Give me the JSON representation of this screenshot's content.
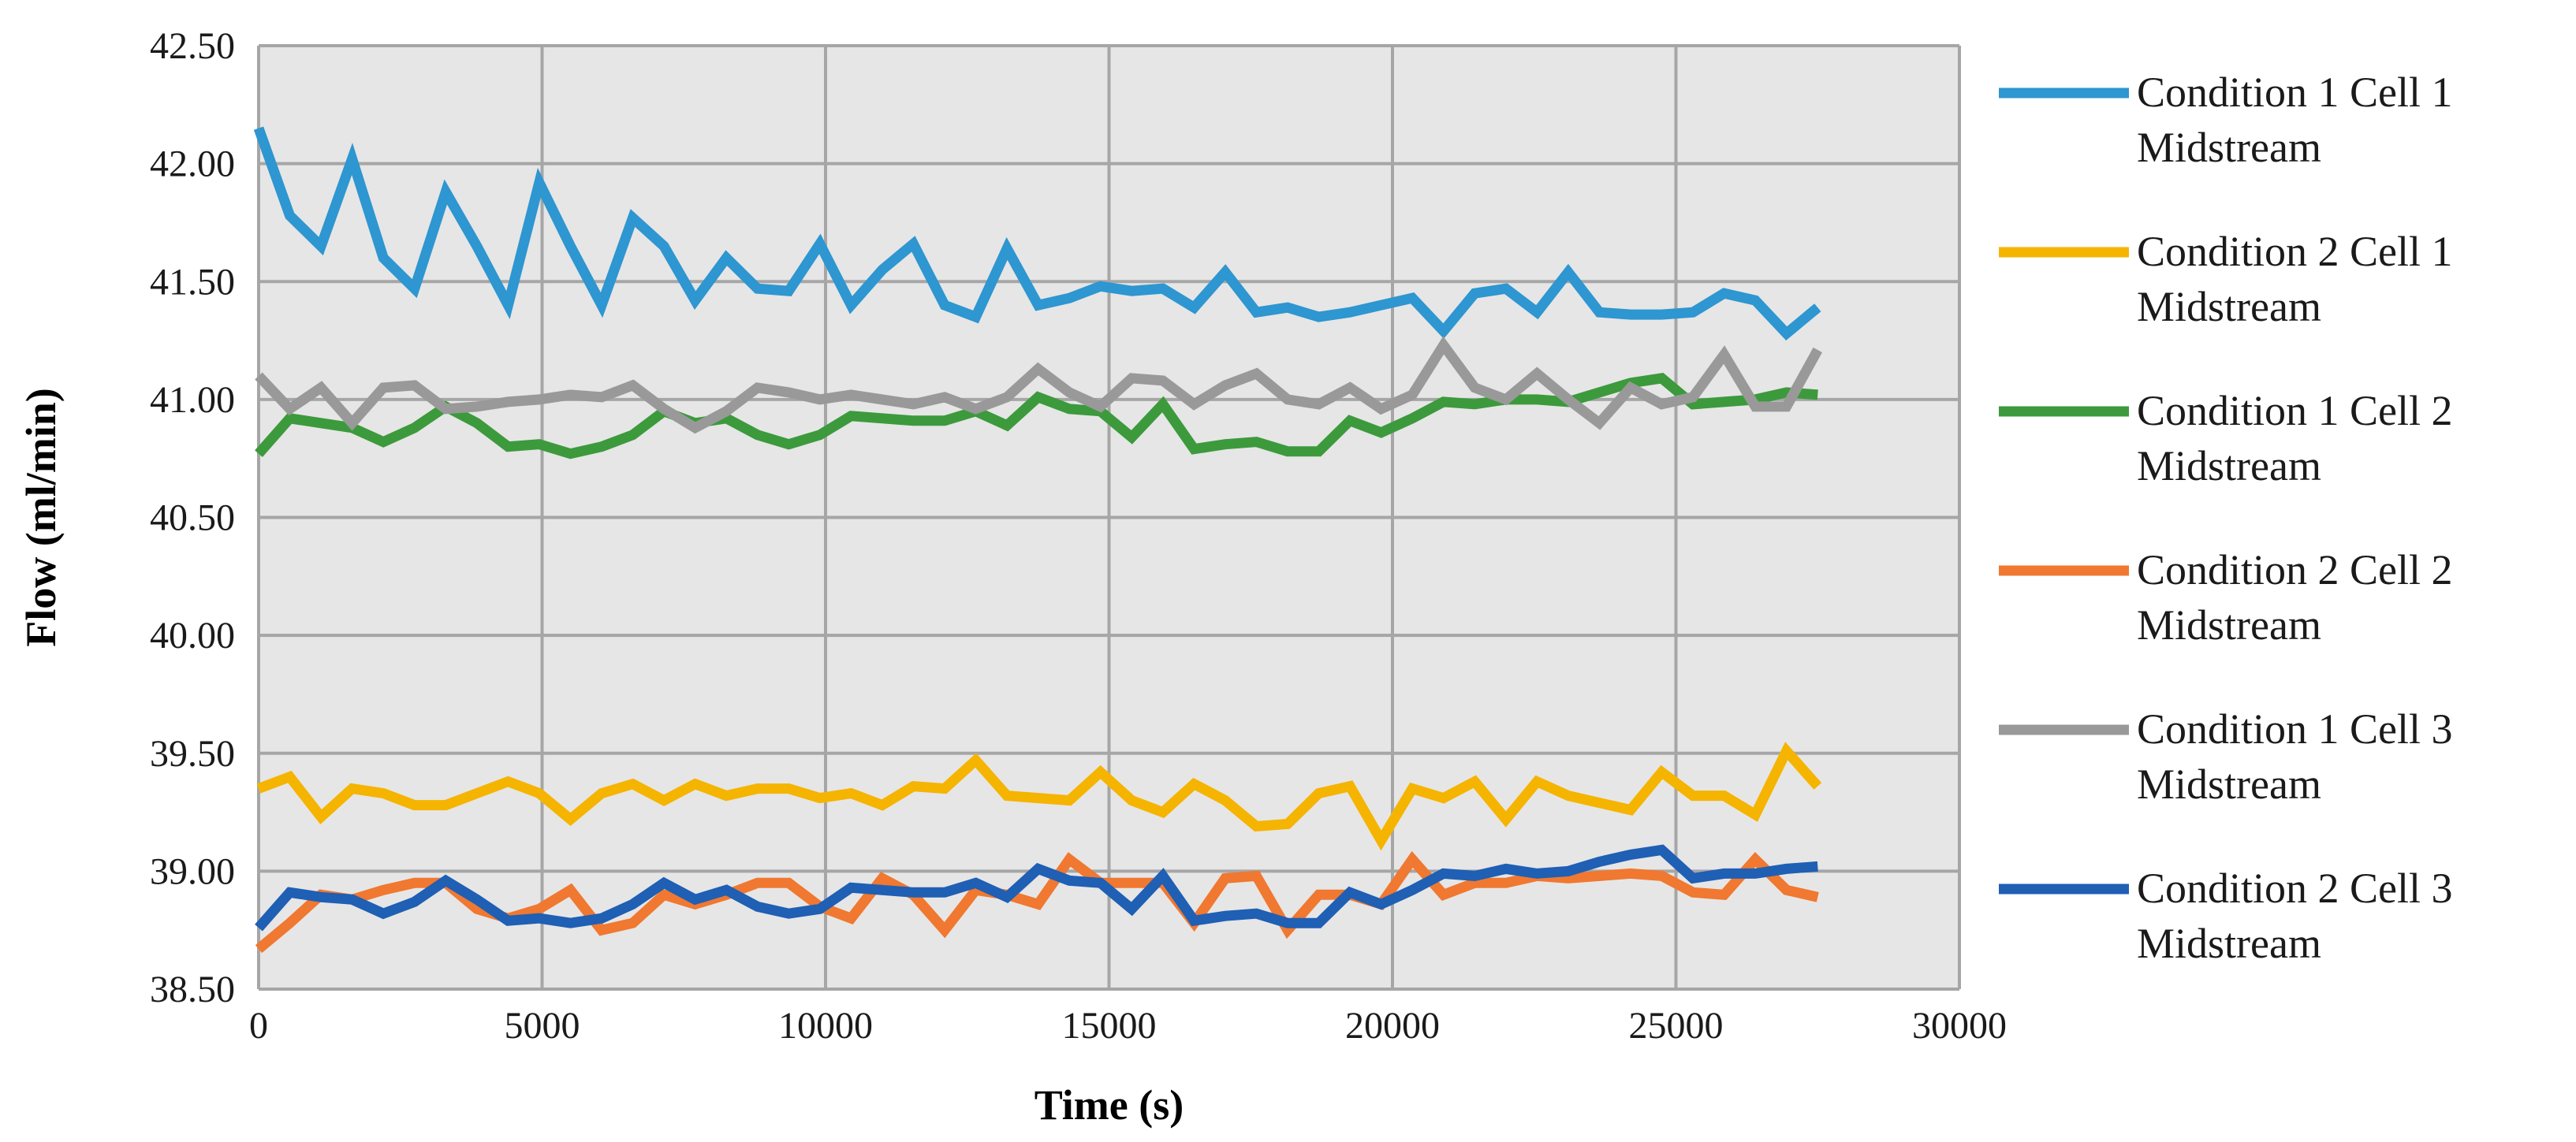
{
  "chart_data": {
    "type": "line",
    "title": "",
    "xlabel": "Time (s)",
    "ylabel": "Flow (ml/min)",
    "xlim": [
      0,
      30000
    ],
    "ylim": [
      38.5,
      42.5
    ],
    "x_ticks": [
      "0",
      "5000",
      "10000",
      "15000",
      "20000",
      "25000",
      "30000"
    ],
    "y_ticks": [
      "38.50",
      "39.00",
      "39.50",
      "40.00",
      "40.50",
      "41.00",
      "41.50",
      "42.00",
      "42.50"
    ],
    "grid": true,
    "plot_background": "#e6e6e6",
    "legend_position": "right",
    "x": [
      0,
      550,
      1100,
      1650,
      2200,
      2750,
      3300,
      3850,
      4400,
      4950,
      5500,
      6050,
      6600,
      7150,
      7700,
      8250,
      8800,
      9350,
      9900,
      10450,
      11000,
      11550,
      12100,
      12650,
      13200,
      13750,
      14300,
      14850,
      15400,
      15950,
      16500,
      17050,
      17600,
      18150,
      18700,
      19250,
      19800,
      20350,
      20900,
      21450,
      22000,
      22550,
      23100,
      23650,
      24200,
      24750,
      25300,
      25850,
      26400,
      26950,
      27500
    ],
    "series": [
      {
        "name": "Condition 1 Cell 1 Midstream",
        "color": "#2e96d0",
        "values": [
          42.15,
          41.78,
          41.65,
          42.02,
          41.6,
          41.47,
          41.88,
          41.65,
          41.4,
          41.92,
          41.65,
          41.4,
          41.77,
          41.65,
          41.42,
          41.6,
          41.47,
          41.46,
          41.66,
          41.4,
          41.55,
          41.66,
          41.4,
          41.35,
          41.64,
          41.4,
          41.43,
          41.48,
          41.46,
          41.47,
          41.39,
          41.54,
          41.37,
          41.39,
          41.35,
          41.37,
          41.4,
          41.43,
          41.29,
          41.45,
          41.47,
          41.37,
          41.54,
          41.37,
          41.36,
          41.36,
          41.37,
          41.45,
          41.42,
          41.28,
          41.39
        ]
      },
      {
        "name": "Condition 2 Cell 1 Midstream",
        "color": "#f5b400",
        "values": [
          39.35,
          39.4,
          39.23,
          39.35,
          39.33,
          39.28,
          39.28,
          39.33,
          39.38,
          39.33,
          39.22,
          39.33,
          39.37,
          39.3,
          39.37,
          39.32,
          39.35,
          39.35,
          39.31,
          39.33,
          39.28,
          39.36,
          39.35,
          39.47,
          39.32,
          39.31,
          39.3,
          39.42,
          39.3,
          39.25,
          39.37,
          39.3,
          39.19,
          39.2,
          39.33,
          39.36,
          39.13,
          39.35,
          39.31,
          39.38,
          39.22,
          39.38,
          39.32,
          39.29,
          39.26,
          39.42,
          39.32,
          39.32,
          39.24,
          39.51,
          39.36
        ]
      },
      {
        "name": "Condition 1 Cell 2 Midstream",
        "color": "#3c9a3c",
        "values": [
          40.77,
          40.92,
          40.9,
          40.88,
          40.82,
          40.88,
          40.97,
          40.9,
          40.8,
          40.81,
          40.77,
          40.8,
          40.85,
          40.95,
          40.9,
          40.92,
          40.85,
          40.81,
          40.85,
          40.93,
          40.92,
          40.91,
          40.91,
          40.95,
          40.89,
          41.01,
          40.96,
          40.95,
          40.84,
          40.98,
          40.79,
          40.81,
          40.82,
          40.78,
          40.78,
          40.91,
          40.86,
          40.92,
          40.99,
          40.98,
          41.0,
          41.0,
          40.99,
          41.03,
          41.07,
          41.09,
          40.98,
          40.99,
          41.0,
          41.03,
          41.02
        ]
      },
      {
        "name": "Condition 2 Cell 2 Midstream",
        "color": "#f07830",
        "values": [
          38.67,
          38.78,
          38.9,
          38.88,
          38.92,
          38.95,
          38.95,
          38.84,
          38.8,
          38.84,
          38.92,
          38.75,
          38.78,
          38.9,
          38.86,
          38.9,
          38.95,
          38.95,
          38.85,
          38.8,
          38.97,
          38.9,
          38.75,
          38.92,
          38.9,
          38.86,
          39.05,
          38.95,
          38.95,
          38.95,
          38.78,
          38.97,
          38.98,
          38.75,
          38.9,
          38.9,
          38.86,
          39.05,
          38.9,
          38.95,
          38.95,
          38.98,
          38.97,
          38.98,
          38.99,
          38.98,
          38.91,
          38.9,
          39.05,
          38.92,
          38.89
        ]
      },
      {
        "name": "Condition 1 Cell 3 Midstream",
        "color": "#999999",
        "values": [
          41.1,
          40.96,
          41.05,
          40.9,
          41.05,
          41.06,
          40.96,
          40.97,
          40.99,
          41.0,
          41.02,
          41.01,
          41.06,
          40.96,
          40.88,
          40.95,
          41.05,
          41.03,
          41.0,
          41.02,
          41.0,
          40.98,
          41.01,
          40.96,
          41.01,
          41.13,
          41.03,
          40.97,
          41.09,
          41.08,
          40.98,
          41.06,
          41.11,
          41.0,
          40.98,
          41.05,
          40.96,
          41.02,
          41.23,
          41.05,
          41.0,
          41.11,
          41.0,
          40.9,
          41.05,
          40.98,
          41.01,
          41.19,
          40.97,
          40.97,
          41.21
        ]
      },
      {
        "name": "Condition 2 Cell 3 Midstream",
        "color": "#1f5fb4",
        "values": [
          38.76,
          38.91,
          38.89,
          38.88,
          38.82,
          38.87,
          38.96,
          38.88,
          38.79,
          38.8,
          38.78,
          38.8,
          38.86,
          38.95,
          38.88,
          38.92,
          38.85,
          38.82,
          38.84,
          38.93,
          38.92,
          38.91,
          38.91,
          38.95,
          38.89,
          39.01,
          38.96,
          38.95,
          38.84,
          38.98,
          38.79,
          38.81,
          38.82,
          38.78,
          38.78,
          38.91,
          38.86,
          38.92,
          38.99,
          38.98,
          39.01,
          38.99,
          39.0,
          39.04,
          39.07,
          39.09,
          38.97,
          38.99,
          38.99,
          39.01,
          39.02
        ]
      }
    ]
  }
}
